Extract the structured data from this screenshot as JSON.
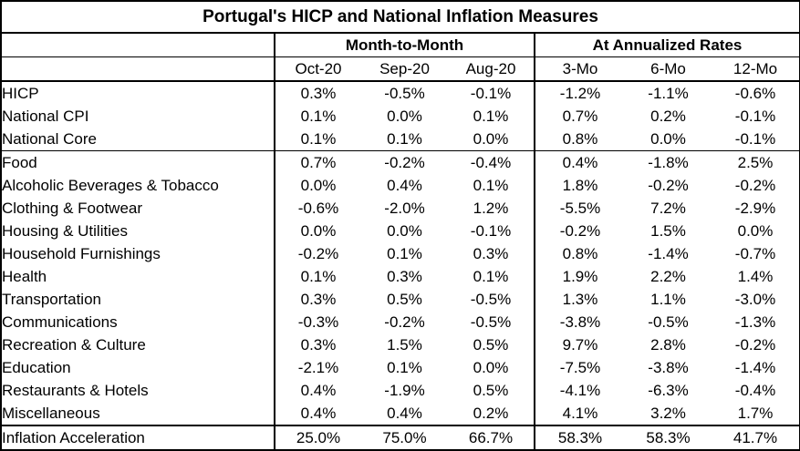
{
  "title": "Portugal's HICP and National Inflation Measures",
  "groups": {
    "month_to_month": "Month-to-Month",
    "annualized": "At Annualized Rates"
  },
  "columns": [
    "Oct-20",
    "Sep-20",
    "Aug-20",
    "3-Mo",
    "6-Mo",
    "12-Mo"
  ],
  "rows": [
    {
      "label": "HICP",
      "values": [
        "0.3%",
        "-0.5%",
        "-0.1%",
        "-1.2%",
        "-1.1%",
        "-0.6%"
      ]
    },
    {
      "label": "National CPI",
      "values": [
        "0.1%",
        "0.0%",
        "0.1%",
        "0.7%",
        "0.2%",
        "-0.1%"
      ]
    },
    {
      "label": "National Core",
      "values": [
        "0.1%",
        "0.1%",
        "0.0%",
        "0.8%",
        "0.0%",
        "-0.1%"
      ]
    },
    {
      "label": "Food",
      "values": [
        "0.7%",
        "-0.2%",
        "-0.4%",
        "0.4%",
        "-1.8%",
        "2.5%"
      ]
    },
    {
      "label": "Alcoholic Beverages & Tobacco",
      "values": [
        "0.0%",
        "0.4%",
        "0.1%",
        "1.8%",
        "-0.2%",
        "-0.2%"
      ]
    },
    {
      "label": "Clothing & Footwear",
      "values": [
        "-0.6%",
        "-2.0%",
        "1.2%",
        "-5.5%",
        "7.2%",
        "-2.9%"
      ]
    },
    {
      "label": "Housing & Utilities",
      "values": [
        "0.0%",
        "0.0%",
        "-0.1%",
        "-0.2%",
        "1.5%",
        "0.0%"
      ]
    },
    {
      "label": "Household Furnishings",
      "values": [
        "-0.2%",
        "0.1%",
        "0.3%",
        "0.8%",
        "-1.4%",
        "-0.7%"
      ]
    },
    {
      "label": "Health",
      "values": [
        "0.1%",
        "0.3%",
        "0.1%",
        "1.9%",
        "2.2%",
        "1.4%"
      ]
    },
    {
      "label": "Transportation",
      "values": [
        "0.3%",
        "0.5%",
        "-0.5%",
        "1.3%",
        "1.1%",
        "-3.0%"
      ]
    },
    {
      "label": "Communications",
      "values": [
        "-0.3%",
        "-0.2%",
        "-0.5%",
        "-3.8%",
        "-0.5%",
        "-1.3%"
      ]
    },
    {
      "label": "Recreation & Culture",
      "values": [
        "0.3%",
        "1.5%",
        "0.5%",
        "9.7%",
        "2.8%",
        "-0.2%"
      ]
    },
    {
      "label": "Education",
      "values": [
        "-2.1%",
        "0.1%",
        "0.0%",
        "-7.5%",
        "-3.8%",
        "-1.4%"
      ]
    },
    {
      "label": "Restaurants & Hotels",
      "values": [
        "0.4%",
        "-1.9%",
        "0.5%",
        "-4.1%",
        "-6.3%",
        "-0.4%"
      ]
    },
    {
      "label": "Miscellaneous",
      "values": [
        "0.4%",
        "0.4%",
        "0.2%",
        "4.1%",
        "3.2%",
        "1.7%"
      ]
    }
  ],
  "footer_row": {
    "label": "Inflation Acceleration",
    "values": [
      "25.0%",
      "75.0%",
      "66.7%",
      "58.3%",
      "58.3%",
      "41.7%"
    ]
  }
}
